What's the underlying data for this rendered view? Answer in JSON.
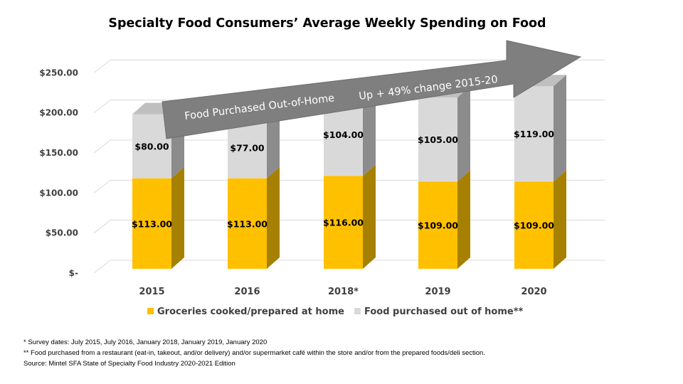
{
  "chart_data": {
    "type": "bar",
    "stacked": true,
    "three_d": true,
    "title": "Specialty Food Consumers’ Average Weekly Spending on Food",
    "categories": [
      "2015",
      "2016",
      "2018*",
      "2019",
      "2020"
    ],
    "series": [
      {
        "name": "Groceries cooked/prepared at home",
        "values": [
          113,
          113,
          116,
          109,
          109
        ],
        "labels": [
          "$113.00",
          "$113.00",
          "$116.00",
          "$109.00",
          "$109.00"
        ],
        "color": "#FFC000"
      },
      {
        "name": "Food purchased out of home**",
        "values": [
          80,
          77,
          104,
          105,
          119
        ],
        "labels": [
          "$80.00",
          "$77.00",
          "$104.00",
          "$105.00",
          "$119.00"
        ],
        "color": "#D9D9D9"
      }
    ],
    "ylim": [
      0,
      250
    ],
    "yticks": [
      "$-",
      "$50.00",
      "$100.00",
      "$150.00",
      "$200.00",
      "$250.00"
    ],
    "grid": true,
    "legend": "bottom",
    "annotation": {
      "text1": "Food Purchased Out-of-Home",
      "text2": "Up + 49% change 2015-20",
      "color": "#7F7F7F"
    }
  },
  "notes": [
    "* Survey dates: July 2015, July 2016, January 2018, January 2019, January 2020",
    "** Food purchased from a restaurant (eat-in, takeout,  and/or delivery) and/or supermarket café within the store and/or from the prepared foods/deli section.",
    "Source: Mintel SFA State of Specialty Food Industry 2020-2021 Edition"
  ]
}
